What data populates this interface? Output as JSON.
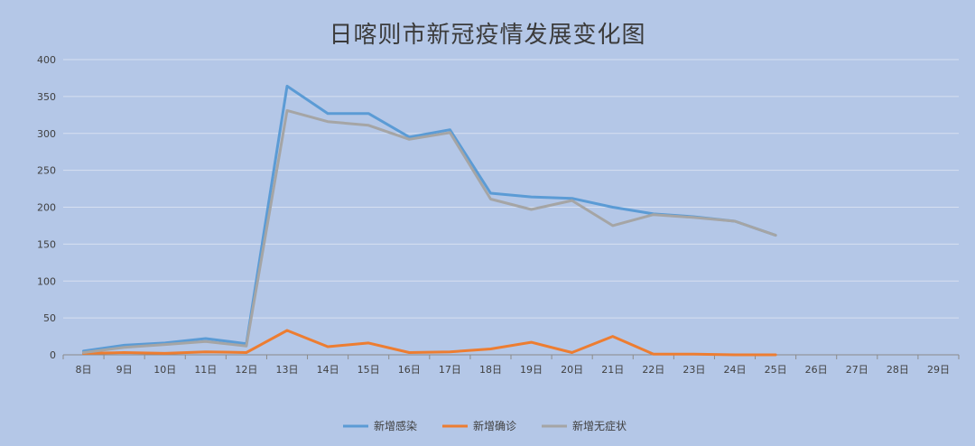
{
  "chart_data": {
    "type": "line",
    "title": "日喀则市新冠疫情发展变化图",
    "xlabel": "",
    "ylabel": "",
    "ylim": [
      0,
      400
    ],
    "yticks": [
      0,
      50,
      100,
      150,
      200,
      250,
      300,
      350,
      400
    ],
    "grid": true,
    "legend_position": "bottom",
    "categories": [
      "8日",
      "9日",
      "10日",
      "11日",
      "12日",
      "13日",
      "14日",
      "15日",
      "16日",
      "17日",
      "18日",
      "19日",
      "20日",
      "21日",
      "22日",
      "23日",
      "24日",
      "25日",
      "26日",
      "27日",
      "28日",
      "29日"
    ],
    "series": [
      {
        "name": "新增感染",
        "color": "#5b9bd5",
        "values": [
          5,
          13,
          16,
          22,
          15,
          364,
          327,
          327,
          295,
          305,
          219,
          214,
          212,
          200,
          191,
          187,
          181,
          162,
          null,
          null,
          null,
          null
        ]
      },
      {
        "name": "新增确诊",
        "color": "#ed7d31",
        "values": [
          2,
          3,
          2,
          4,
          3,
          33,
          11,
          16,
          3,
          4,
          8,
          17,
          3,
          25,
          1,
          1,
          0,
          0,
          null,
          null,
          null,
          null
        ]
      },
      {
        "name": "新增无症状",
        "color": "#a5a5a5",
        "values": [
          3,
          10,
          14,
          18,
          12,
          331,
          316,
          311,
          292,
          301,
          211,
          197,
          209,
          175,
          190,
          186,
          181,
          162,
          null,
          null,
          null,
          null
        ]
      }
    ]
  }
}
